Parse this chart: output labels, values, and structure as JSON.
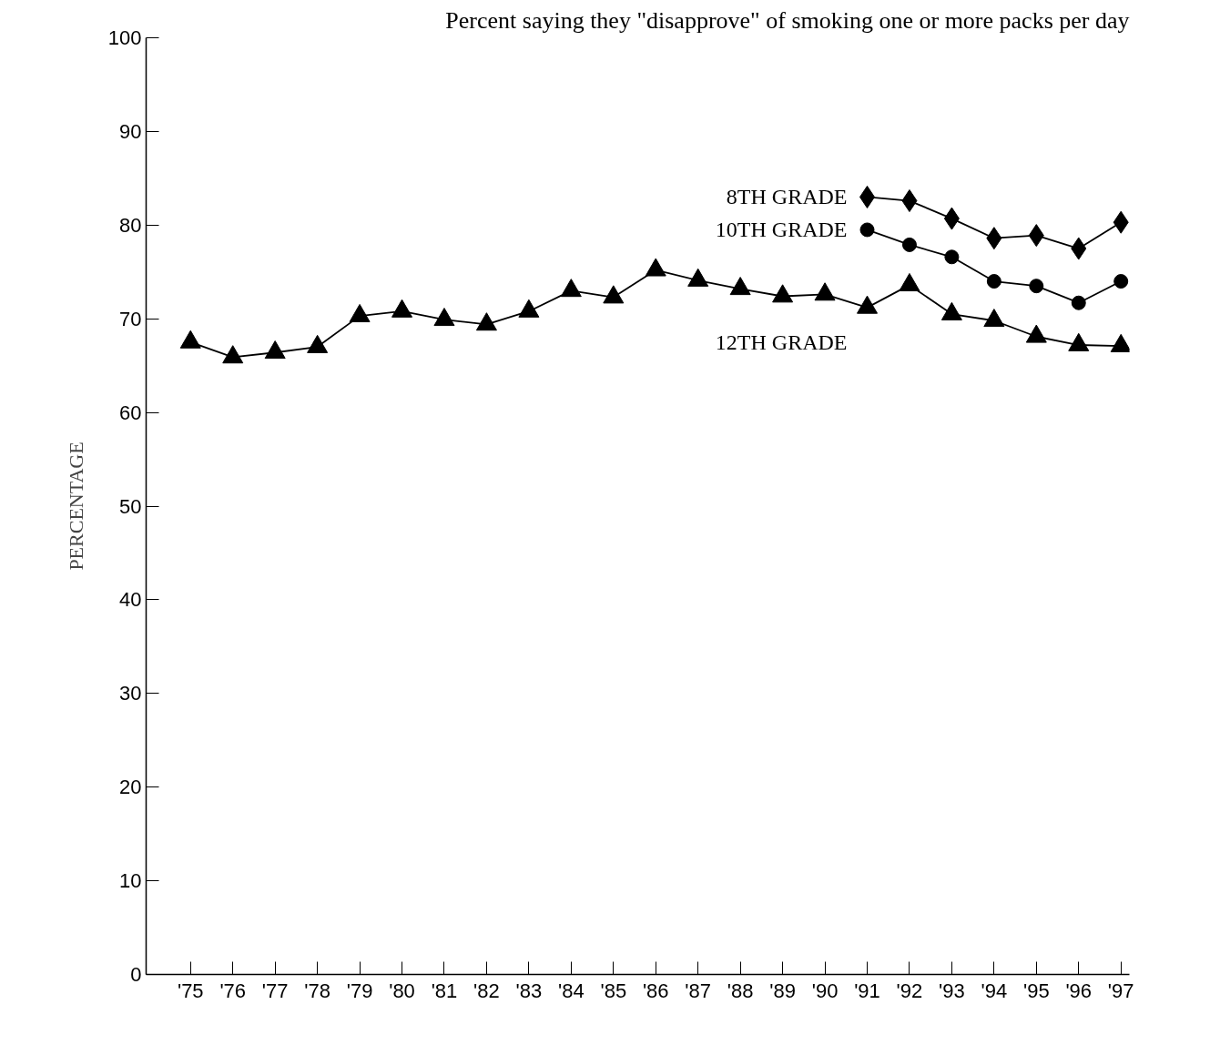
{
  "chart_data": {
    "type": "line",
    "title": "Percent saying they \"disapprove\" of smoking one or more packs per day",
    "ylabel": "PERCENTAGE",
    "categories": [
      "'75",
      "'76",
      "'77",
      "'78",
      "'79",
      "'80",
      "'81",
      "'82",
      "'83",
      "'84",
      "'85",
      "'86",
      "'87",
      "'88",
      "'89",
      "'90",
      "'91",
      "'92",
      "'93",
      "'94",
      "'95",
      "'96",
      "'97"
    ],
    "series": [
      {
        "name": "8TH GRADE",
        "color": "#000000",
        "marker": "diamond",
        "values": [
          null,
          null,
          null,
          null,
          null,
          null,
          null,
          null,
          null,
          null,
          null,
          null,
          null,
          null,
          null,
          null,
          83.0,
          82.6,
          80.7,
          78.6,
          78.9,
          77.5,
          80.3
        ]
      },
      {
        "name": "10TH GRADE",
        "color": "#000000",
        "marker": "circle",
        "values": [
          null,
          null,
          null,
          null,
          null,
          null,
          null,
          null,
          null,
          null,
          null,
          null,
          null,
          null,
          null,
          null,
          79.5,
          77.9,
          76.6,
          74.0,
          73.5,
          71.7,
          74.0
        ]
      },
      {
        "name": "12TH GRADE",
        "color": "#000000",
        "marker": "triangle",
        "values": [
          67.5,
          65.9,
          66.4,
          67.0,
          70.3,
          70.8,
          69.9,
          69.4,
          70.8,
          73.0,
          72.3,
          75.2,
          74.1,
          73.2,
          72.4,
          72.6,
          71.2,
          73.6,
          70.5,
          69.8,
          68.1,
          67.2,
          67.1
        ]
      }
    ],
    "ylim": [
      0,
      100
    ],
    "yticks": [
      0,
      10,
      20,
      30,
      40,
      50,
      60,
      70,
      80,
      90,
      100
    ],
    "grid": false,
    "line_style": "solid"
  }
}
